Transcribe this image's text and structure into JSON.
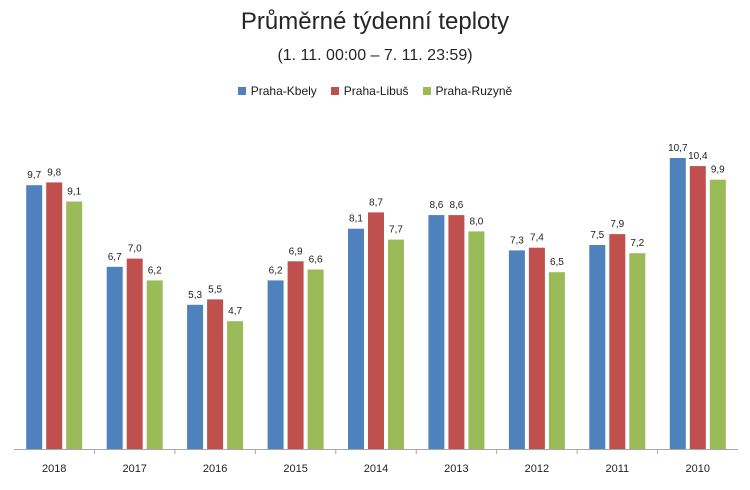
{
  "chart_data": {
    "type": "bar",
    "title": "Průměrné týdenní teploty",
    "subtitle": "(1. 11. 00:00 – 7. 11. 23:59)",
    "categories": [
      "2018",
      "2017",
      "2016",
      "2015",
      "2014",
      "2013",
      "2012",
      "2011",
      "2010"
    ],
    "series": [
      {
        "name": "Praha-Kbely",
        "color": "#4f81bd",
        "values": [
          9.7,
          6.7,
          5.3,
          6.2,
          8.1,
          8.6,
          7.3,
          7.5,
          10.7
        ]
      },
      {
        "name": "Praha-Libuš",
        "color": "#c0504d",
        "values": [
          9.8,
          7.0,
          5.5,
          6.9,
          8.7,
          8.6,
          7.4,
          7.9,
          10.4
        ]
      },
      {
        "name": "Praha-Ruzyně",
        "color": "#9bbb59",
        "values": [
          9.1,
          6.2,
          4.7,
          6.6,
          7.7,
          8.0,
          6.5,
          7.2,
          9.9
        ]
      }
    ],
    "value_labels": [
      [
        "9,7",
        "6,7",
        "5,3",
        "6,2",
        "8,1",
        "8,6",
        "7,3",
        "7,5",
        "10,7"
      ],
      [
        "9,8",
        "7,0",
        "5,5",
        "6,9",
        "8,7",
        "8,6",
        "7,4",
        "7,9",
        "10,4"
      ],
      [
        "9,1",
        "6,2",
        "4,7",
        "6,6",
        "7,7",
        "8,0",
        "6,5",
        "7,2",
        "9,9"
      ]
    ],
    "ylim": [
      0,
      11
    ],
    "grid": false,
    "legend_position": "top-center"
  }
}
